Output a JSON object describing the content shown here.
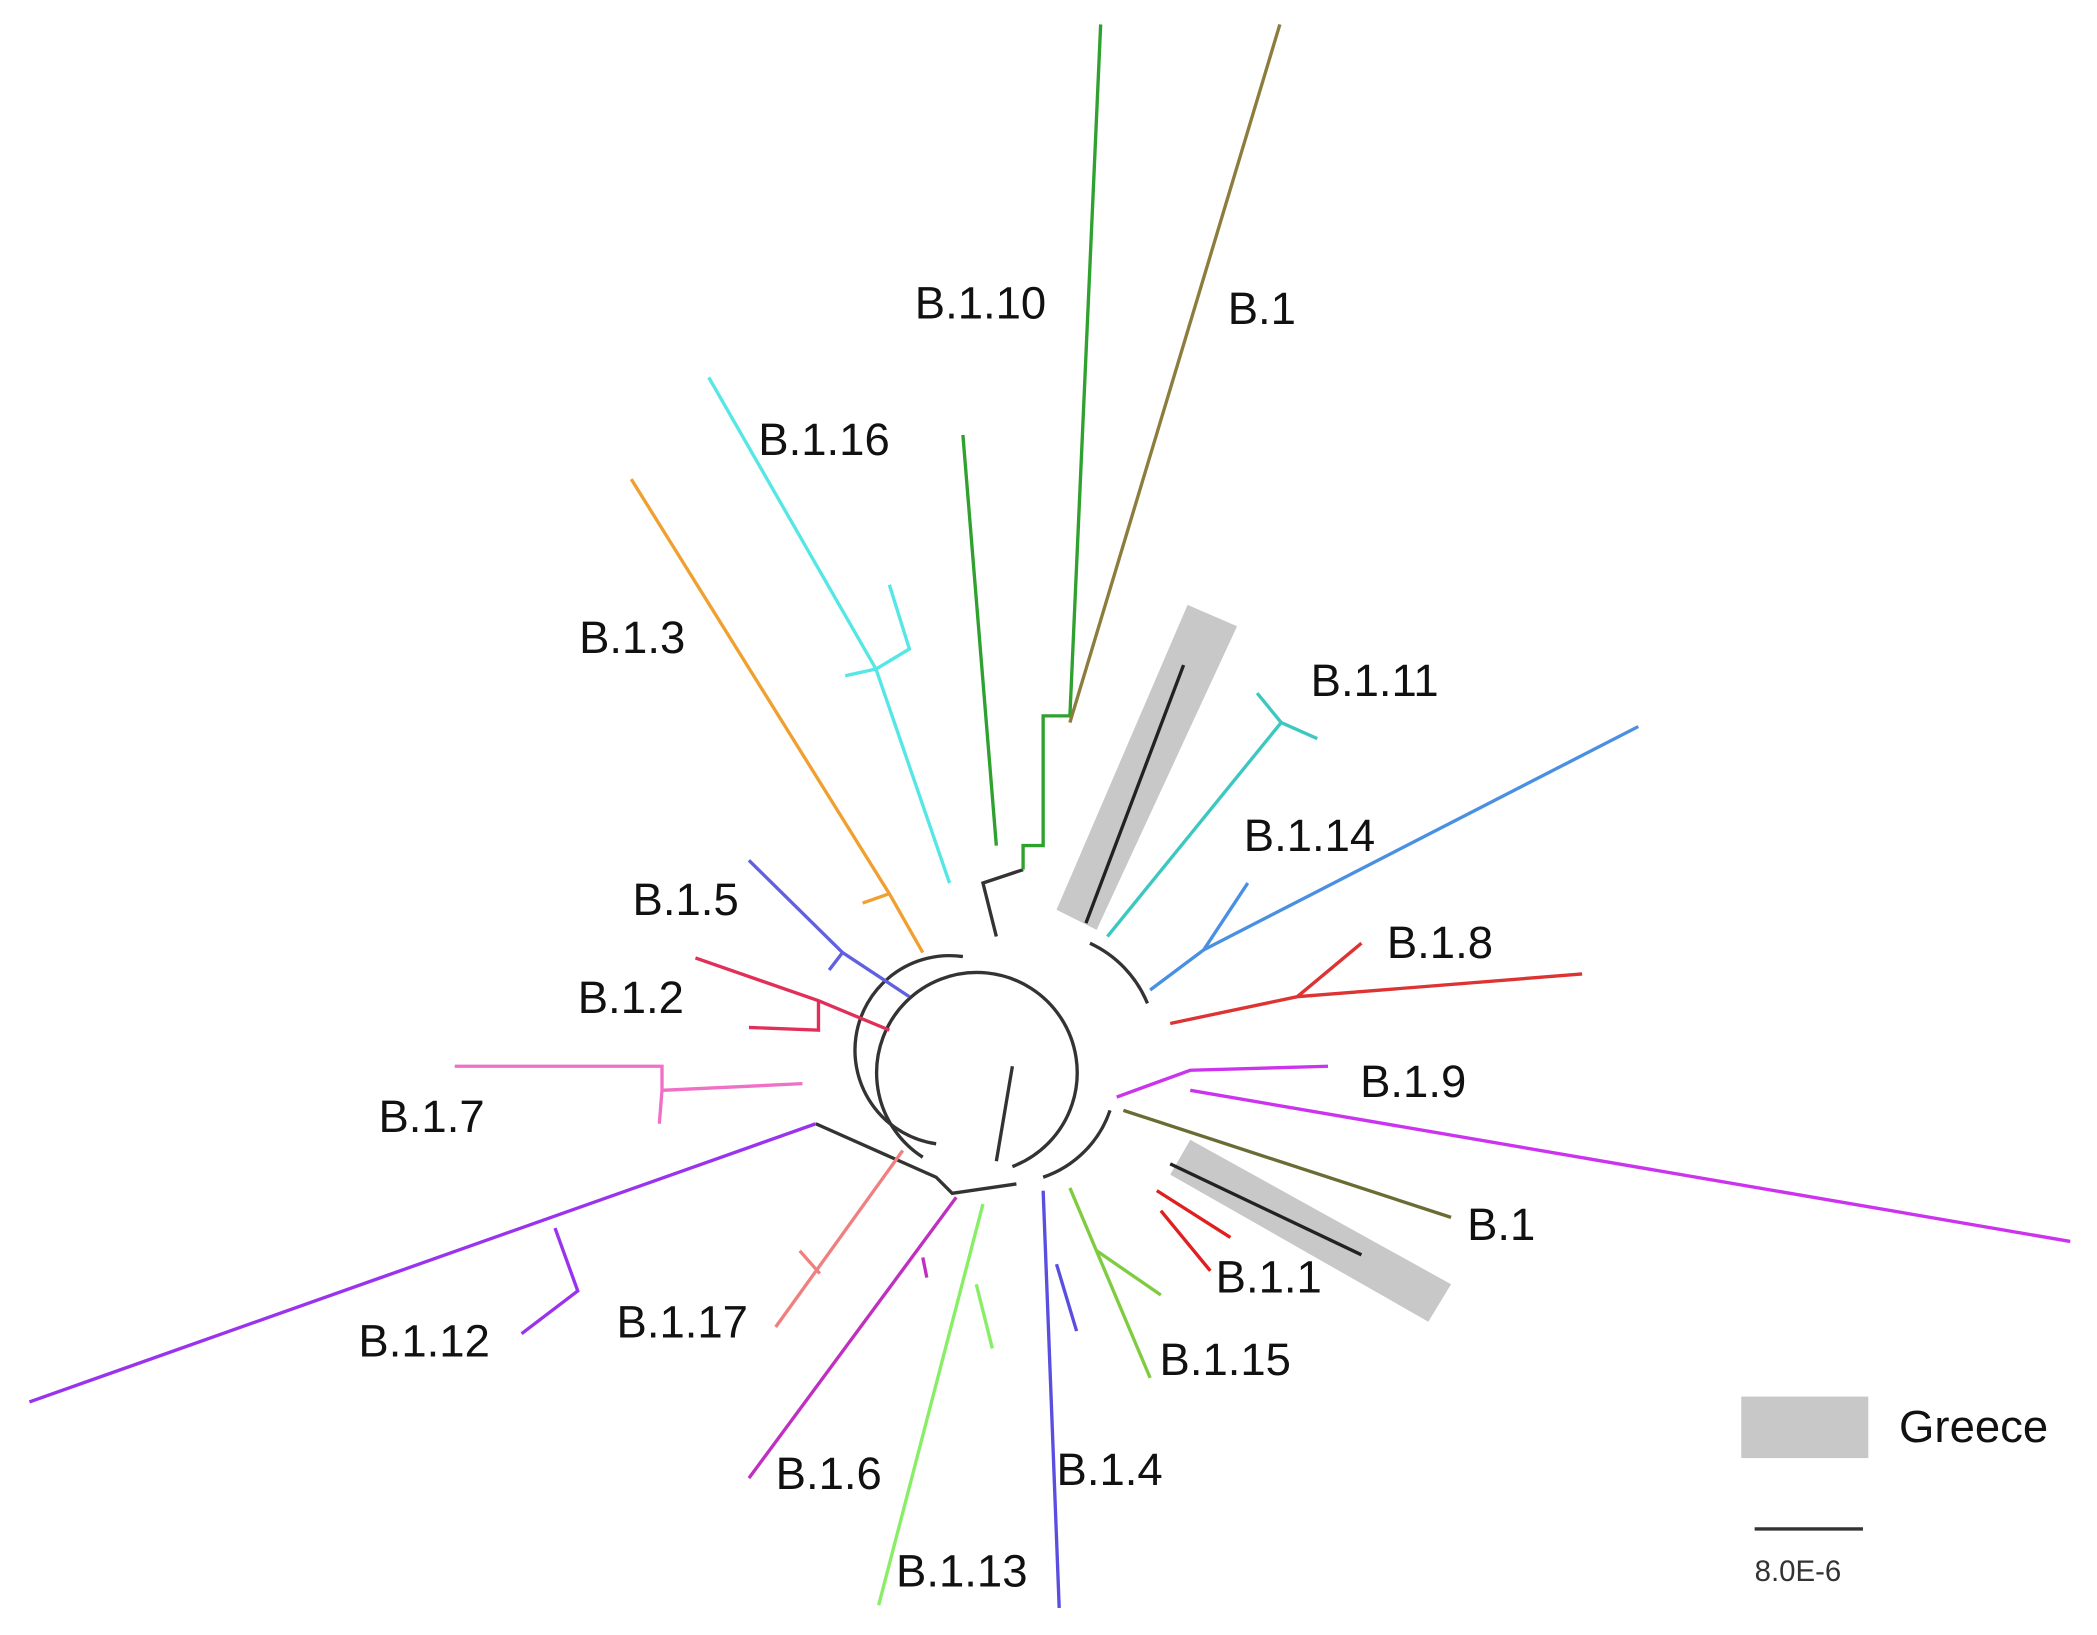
{
  "clades": [
    {
      "label": "B.1.10"
    },
    {
      "label": "B.1"
    },
    {
      "label": "B.1.16"
    },
    {
      "label": "B.1.3"
    },
    {
      "label": "B.1.11"
    },
    {
      "label": "B.1.14"
    },
    {
      "label": "B.1.5"
    },
    {
      "label": "B.1.8"
    },
    {
      "label": "B.1.2"
    },
    {
      "label": "B.1.9"
    },
    {
      "label": "B.1.7"
    },
    {
      "label": "B.1"
    },
    {
      "label": "B.1.1"
    },
    {
      "label": "B.1.17"
    },
    {
      "label": "B.1.12"
    },
    {
      "label": "B.1.15"
    },
    {
      "label": "B.1.6"
    },
    {
      "label": "B.1.4"
    },
    {
      "label": "B.1.13"
    }
  ],
  "legend": {
    "label": "Greece"
  },
  "scale_bar": {
    "label": "8.0E-6"
  }
}
